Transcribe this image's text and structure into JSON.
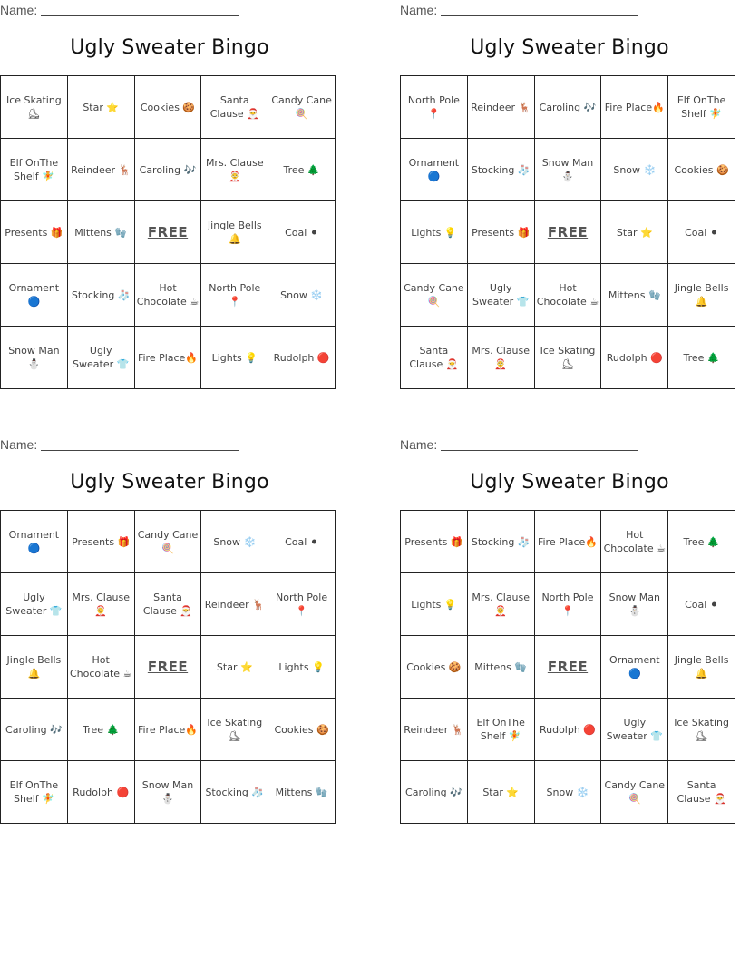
{
  "name_label": "Name:",
  "free_label": "FREE",
  "cards": [
    {
      "title": "Ugly Sweater Bingo",
      "rows": [
        [
          "Ice Skating ⛸",
          "Star ⭐",
          "Cookies 🍪",
          "Santa Clause 🎅",
          "Candy Cane 🍭"
        ],
        [
          "Elf OnThe Shelf 🧚",
          "Reindeer 🦌",
          "Caroling 🎶",
          "Mrs. Clause 🤶",
          "Tree 🌲"
        ],
        [
          "Presents 🎁",
          "Mittens 🧤",
          "FREE",
          "Jingle Bells 🔔",
          "Coal ⚫"
        ],
        [
          "Ornament 🔵",
          "Stocking 🧦",
          "Hot Chocolate ☕",
          "North Pole 📍",
          "Snow ❄️"
        ],
        [
          "Snow Man ⛄",
          "Ugly Sweater 👕",
          "Fire Place🔥",
          "Lights 💡",
          "Rudolph 🔴"
        ]
      ]
    },
    {
      "title": "Ugly Sweater Bingo",
      "rows": [
        [
          "North Pole 📍",
          "Reindeer 🦌",
          "Caroling 🎶",
          "Fire Place🔥",
          "Elf OnThe Shelf 🧚"
        ],
        [
          "Ornament 🔵",
          "Stocking 🧦",
          "Snow Man ⛄",
          "Snow ❄️",
          "Cookies 🍪"
        ],
        [
          "Lights 💡",
          "Presents 🎁",
          "FREE",
          "Star ⭐",
          "Coal ⚫"
        ],
        [
          "Candy Cane 🍭",
          "Ugly Sweater 👕",
          "Hot Chocolate ☕",
          "Mittens 🧤",
          "Jingle Bells 🔔"
        ],
        [
          "Santa Clause 🎅",
          "Mrs. Clause 🤶",
          "Ice Skating ⛸",
          "Rudolph 🔴",
          "Tree 🌲"
        ]
      ]
    },
    {
      "title": "Ugly Sweater Bingo",
      "rows": [
        [
          "Ornament 🔵",
          "Presents 🎁",
          "Candy Cane 🍭",
          "Snow ❄️",
          "Coal ⚫"
        ],
        [
          "Ugly Sweater 👕",
          "Mrs. Clause 🤶",
          "Santa Clause 🎅",
          "Reindeer 🦌",
          "North Pole 📍"
        ],
        [
          "Jingle Bells 🔔",
          "Hot Chocolate ☕",
          "FREE",
          "Star ⭐",
          "Lights 💡"
        ],
        [
          "Caroling 🎶",
          "Tree 🌲",
          "Fire Place🔥",
          "Ice Skating ⛸",
          "Cookies 🍪"
        ],
        [
          "Elf OnThe Shelf 🧚",
          "Rudolph 🔴",
          "Snow Man ⛄",
          "Stocking 🧦",
          "Mittens 🧤"
        ]
      ]
    },
    {
      "title": "Ugly Sweater Bingo",
      "rows": [
        [
          "Presents 🎁",
          "Stocking 🧦",
          "Fire Place🔥",
          "Hot Chocolate ☕",
          "Tree 🌲"
        ],
        [
          "Lights 💡",
          "Mrs. Clause 🤶",
          "North Pole 📍",
          "Snow Man ⛄",
          "Coal ⚫"
        ],
        [
          "Cookies 🍪",
          "Mittens 🧤",
          "FREE",
          "Ornament 🔵",
          "Jingle Bells 🔔"
        ],
        [
          "Reindeer 🦌",
          "Elf OnThe Shelf 🧚",
          "Rudolph 🔴",
          "Ugly Sweater 👕",
          "Ice Skating ⛸"
        ],
        [
          "Caroling 🎶",
          "Star ⭐",
          "Snow ❄️",
          "Candy Cane 🍭",
          "Santa Clause 🎅"
        ]
      ]
    }
  ]
}
